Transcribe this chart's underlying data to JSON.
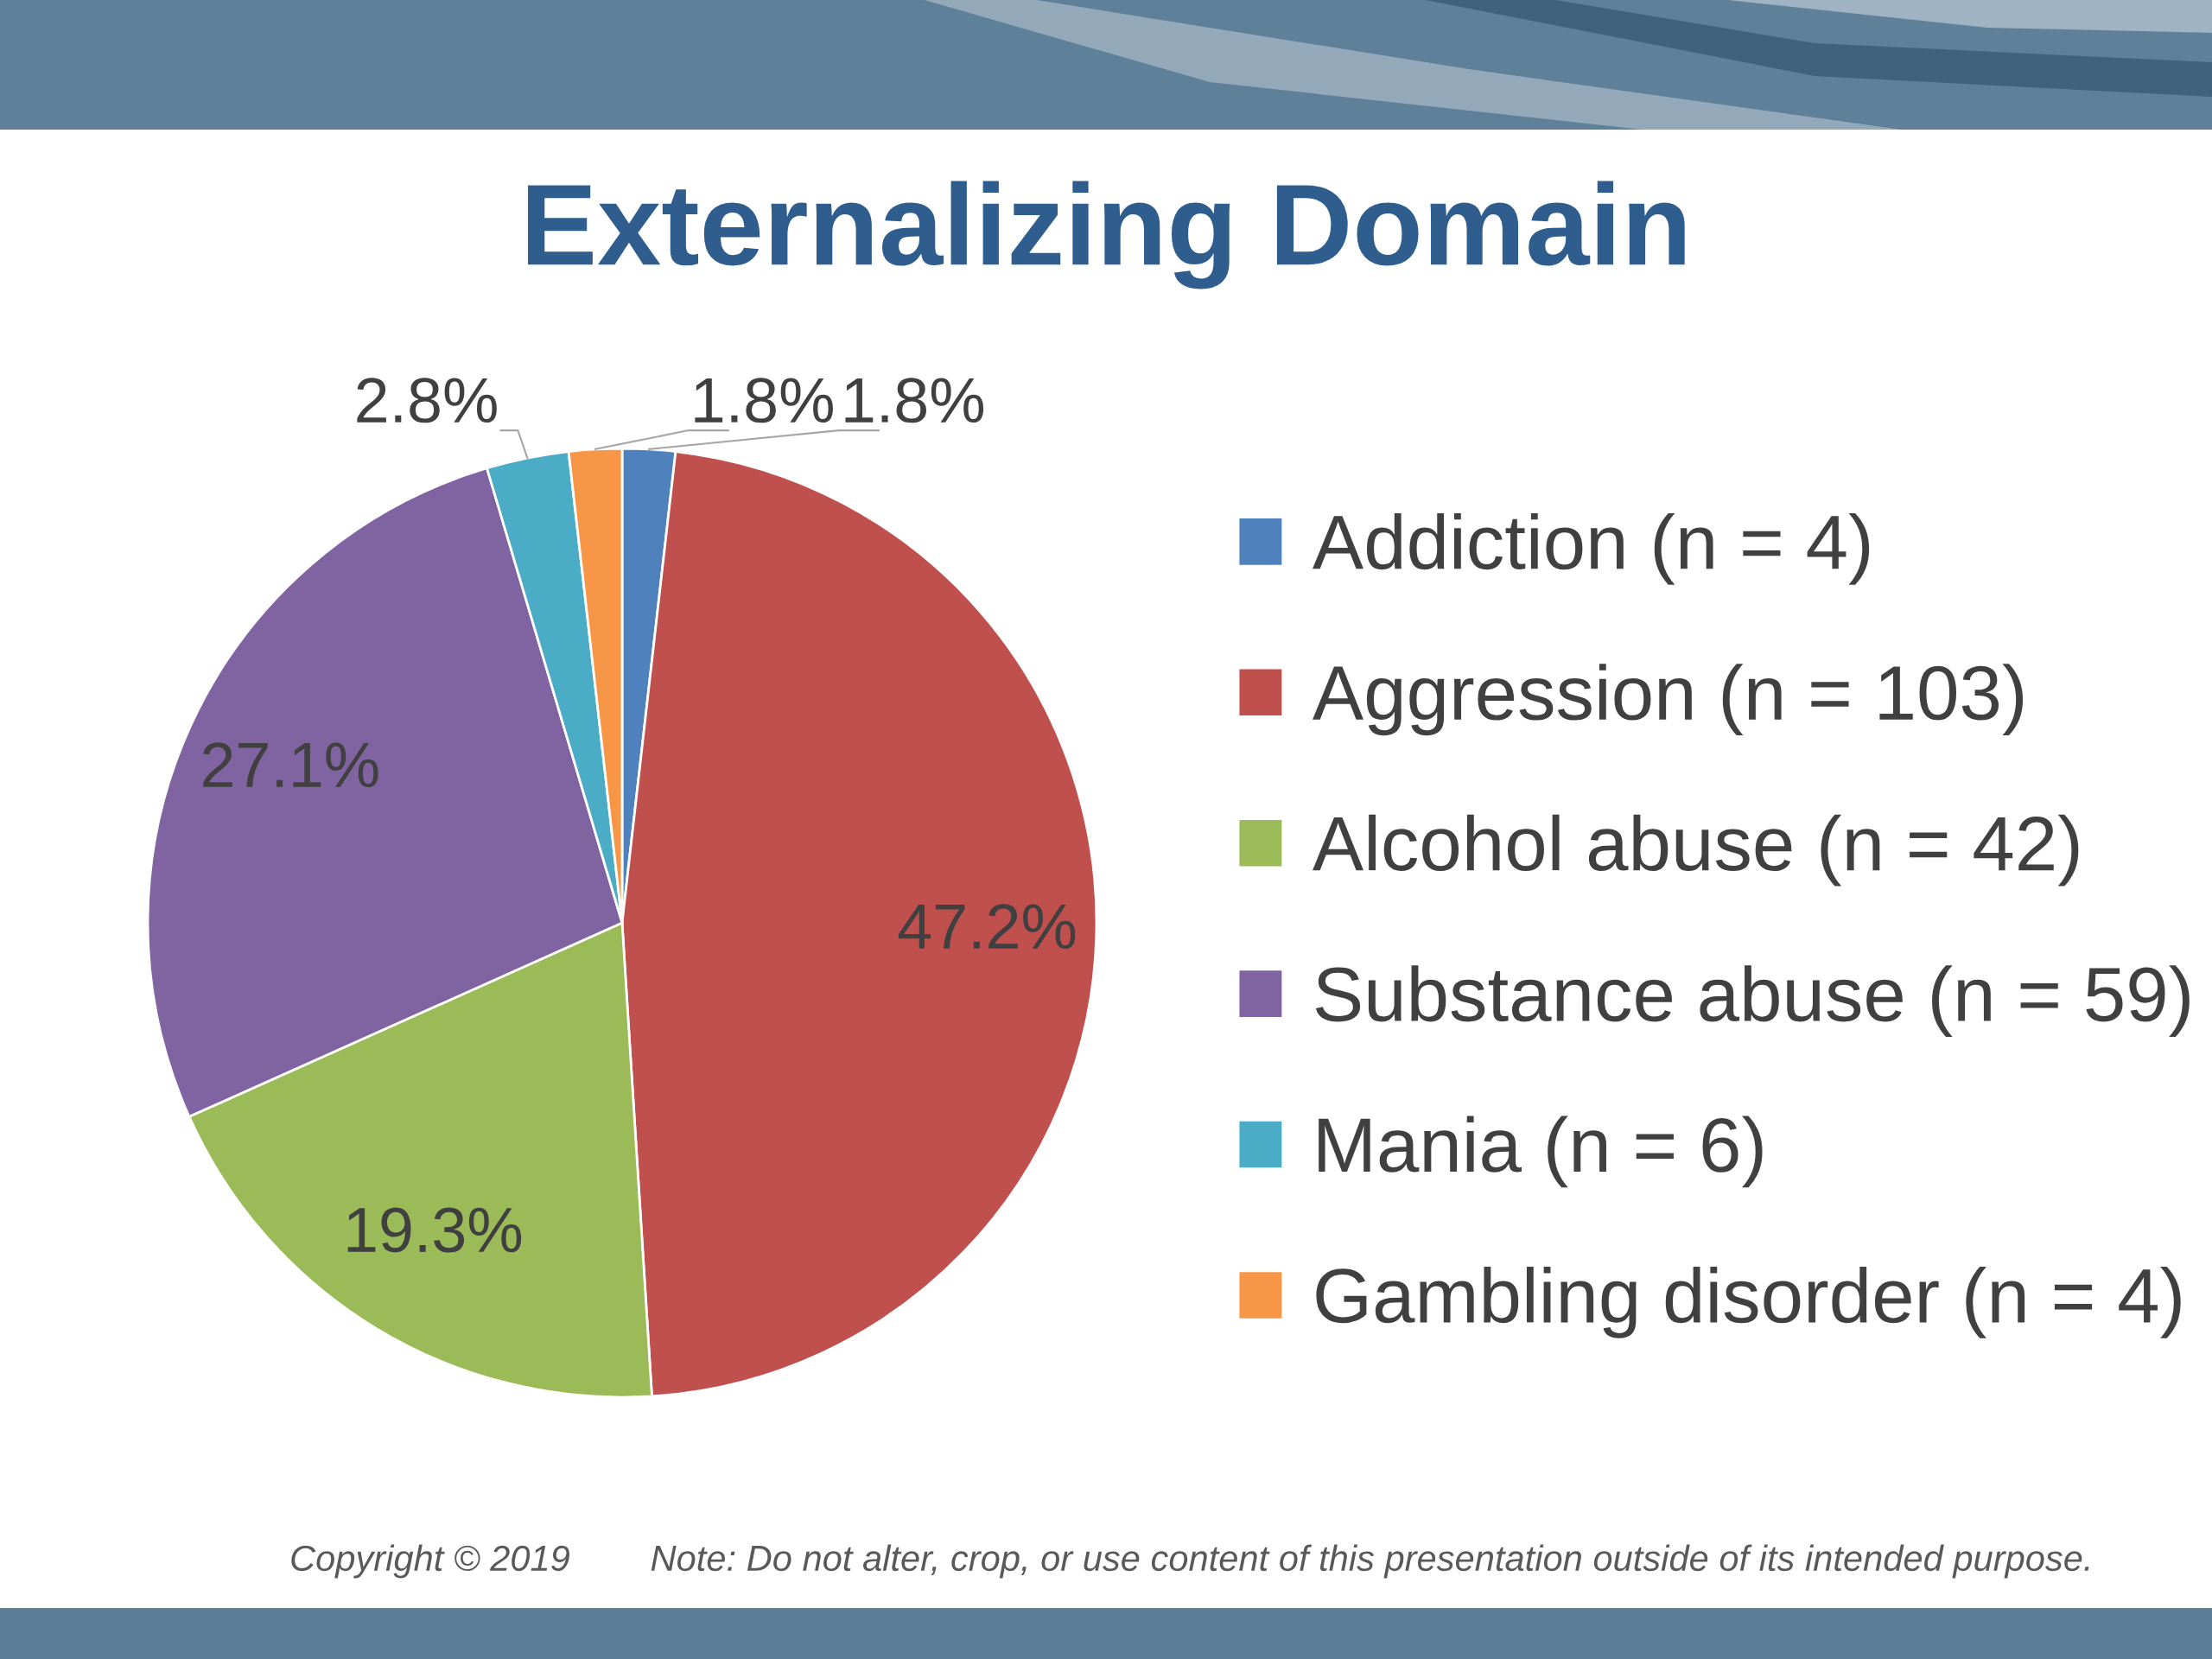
{
  "chart_data": {
    "type": "pie",
    "title": "Externalizing Domain",
    "categories": [
      "Addiction (n = 4)",
      "Aggression (n = 103)",
      "Alcohol abuse (n = 42)",
      "Substance abuse (n = 59)",
      "Mania (n = 6)",
      "Gambling disorder (n = 4)"
    ],
    "values": [
      1.8,
      47.2,
      19.3,
      27.1,
      2.8,
      1.8
    ],
    "colors": [
      "#4f81bd",
      "#c0504d",
      "#9bbb59",
      "#8064a2",
      "#4bacc6",
      "#f79646"
    ],
    "value_labels": [
      "1.8%",
      "47.2%",
      "19.3%",
      "27.1%",
      "2.8%",
      "1.8%"
    ],
    "legend": "right",
    "annotations": [
      "Copyright © 2019",
      "Note: Do not alter, crop, or use content of this presentation outside of its intended purpose."
    ]
  }
}
